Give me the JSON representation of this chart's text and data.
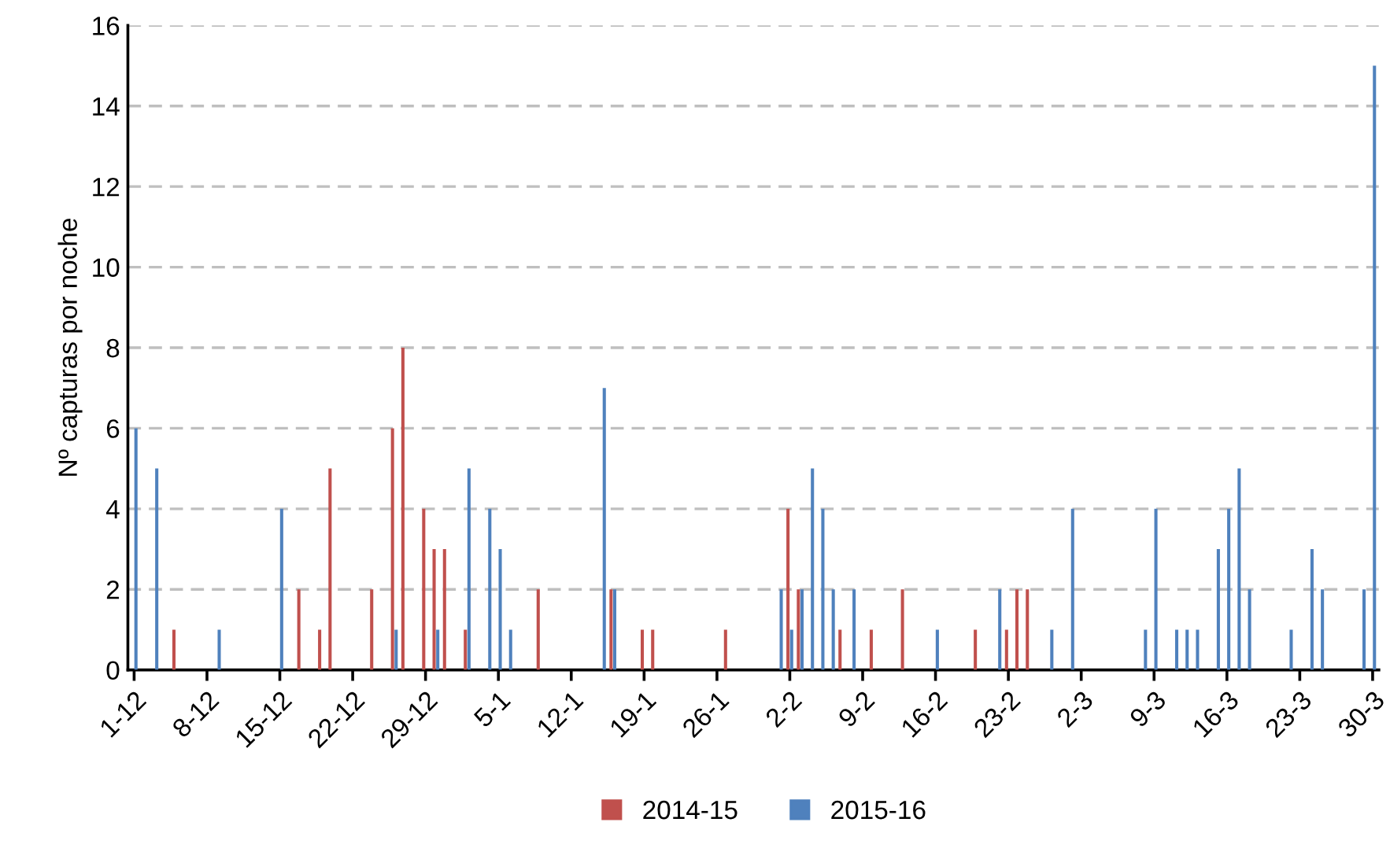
{
  "chart_data": {
    "type": "bar",
    "ylabel": "Nº capturas por noche",
    "categories": [
      "1-12",
      null,
      null,
      null,
      null,
      null,
      null,
      "8-12",
      null,
      null,
      null,
      null,
      null,
      null,
      "15-12",
      null,
      null,
      null,
      null,
      null,
      null,
      "22-12",
      null,
      null,
      null,
      null,
      null,
      null,
      "29-12",
      null,
      null,
      null,
      null,
      null,
      null,
      "5-1",
      null,
      null,
      null,
      null,
      null,
      null,
      "12-1",
      null,
      null,
      null,
      null,
      null,
      null,
      "19-1",
      null,
      null,
      null,
      null,
      null,
      null,
      "26-1",
      null,
      null,
      null,
      null,
      null,
      null,
      "2-2",
      null,
      null,
      null,
      null,
      null,
      null,
      "9-2",
      null,
      null,
      null,
      null,
      null,
      null,
      "16-2",
      null,
      null,
      null,
      null,
      null,
      null,
      "23-2",
      null,
      null,
      null,
      null,
      null,
      null,
      "2-3",
      null,
      null,
      null,
      null,
      null,
      null,
      "9-3",
      null,
      null,
      null,
      null,
      null,
      null,
      "16-3",
      null,
      null,
      null,
      null,
      null,
      null,
      "23-3",
      null,
      null,
      null,
      null,
      null,
      null,
      "30-3"
    ],
    "series": [
      {
        "name": "2014-15",
        "color": "#c0504d",
        "values": [
          0,
          0,
          0,
          0,
          1,
          0,
          0,
          0,
          0,
          0,
          0,
          0,
          0,
          0,
          0,
          0,
          2,
          0,
          1,
          5,
          0,
          0,
          0,
          2,
          0,
          6,
          8,
          0,
          4,
          3,
          3,
          0,
          1,
          0,
          0,
          0,
          0,
          0,
          0,
          2,
          0,
          0,
          0,
          0,
          0,
          0,
          2,
          0,
          0,
          1,
          1,
          0,
          0,
          0,
          0,
          0,
          0,
          1,
          0,
          0,
          0,
          0,
          0,
          4,
          2,
          0,
          0,
          0,
          1,
          0,
          0,
          1,
          0,
          0,
          2,
          0,
          0,
          0,
          0,
          0,
          0,
          1,
          0,
          0,
          1,
          2,
          2,
          0,
          0,
          0,
          0,
          0,
          0,
          0,
          0,
          0,
          0,
          0,
          0,
          0,
          0,
          0,
          0,
          0,
          0,
          0,
          0,
          0,
          0,
          0,
          0,
          0,
          0,
          0,
          0,
          0,
          0,
          0,
          0,
          0
        ]
      },
      {
        "name": "2015-16",
        "color": "#4f81bd",
        "values": [
          6,
          0,
          5,
          0,
          0,
          0,
          0,
          0,
          1,
          0,
          0,
          0,
          0,
          0,
          4,
          0,
          0,
          0,
          0,
          0,
          0,
          0,
          0,
          0,
          0,
          1,
          0,
          0,
          0,
          1,
          0,
          0,
          5,
          0,
          4,
          3,
          1,
          0,
          0,
          0,
          0,
          0,
          0,
          0,
          0,
          7,
          2,
          0,
          0,
          0,
          0,
          0,
          0,
          0,
          0,
          0,
          0,
          0,
          0,
          0,
          0,
          0,
          2,
          1,
          2,
          5,
          4,
          2,
          0,
          2,
          0,
          0,
          0,
          0,
          0,
          0,
          0,
          1,
          0,
          0,
          0,
          0,
          0,
          2,
          0,
          0,
          0,
          0,
          1,
          0,
          4,
          0,
          0,
          0,
          0,
          0,
          0,
          1,
          4,
          0,
          1,
          1,
          1,
          0,
          3,
          4,
          5,
          2,
          0,
          0,
          0,
          1,
          0,
          3,
          2,
          0,
          0,
          0,
          2,
          15
        ]
      }
    ],
    "ylim": [
      0,
      16
    ],
    "yticks": [
      0,
      2,
      4,
      6,
      8,
      10,
      12,
      14,
      16
    ],
    "grid": "y",
    "legend": "bottom"
  }
}
